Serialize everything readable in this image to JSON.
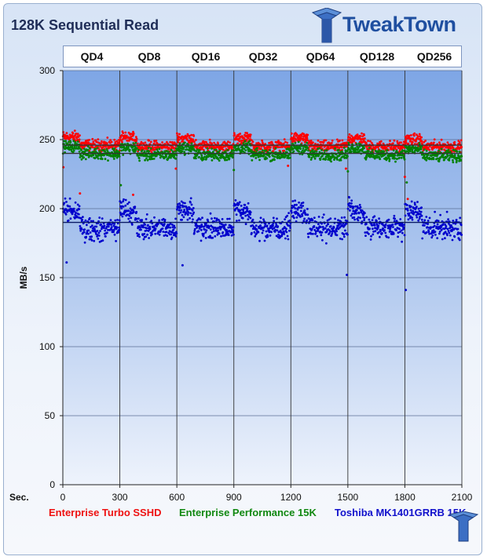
{
  "chart_data": {
    "type": "scatter",
    "title": "128K Sequential Read",
    "ylabel": "MB/s",
    "xlabel": "Sec.",
    "ylim": [
      0,
      300
    ],
    "xlim": [
      0,
      2100
    ],
    "yticks": [
      0,
      50,
      100,
      150,
      200,
      250,
      300
    ],
    "xticks": [
      0,
      300,
      600,
      900,
      1200,
      1500,
      1800,
      2100
    ],
    "grid": true,
    "segments": [
      "QD4",
      "QD8",
      "QD16",
      "QD32",
      "QD64",
      "QD128",
      "QD256"
    ],
    "segment_bounds": [
      0,
      300,
      600,
      900,
      1200,
      1500,
      1800,
      2100
    ],
    "legend_position": "bottom",
    "series": [
      {
        "name": "Enterprise Turbo SSHD",
        "color": "#ff0000",
        "segment_profile": [
          [
            252,
            246
          ],
          [
            251,
            245
          ],
          [
            251,
            245
          ],
          [
            251,
            245
          ],
          [
            251,
            245
          ],
          [
            251,
            245
          ],
          [
            250,
            245
          ]
        ],
        "spread": 3.5,
        "average": 246,
        "outliers": [
          [
            3,
            230
          ],
          [
            90,
            211
          ],
          [
            370,
            210
          ],
          [
            595,
            229
          ],
          [
            1185,
            231
          ],
          [
            1490,
            229
          ],
          [
            1800,
            223
          ],
          [
            1815,
            207
          ]
        ]
      },
      {
        "name": "Enterprise Performance 15K",
        "color": "#008000",
        "segment_profile": [
          [
            245,
            240
          ],
          [
            244,
            239
          ],
          [
            244,
            239
          ],
          [
            244,
            239
          ],
          [
            244,
            239
          ],
          [
            244,
            239
          ],
          [
            243,
            238
          ]
        ],
        "spread": 3.5,
        "average": 240,
        "outliers": [
          [
            305,
            217
          ],
          [
            1810,
            219
          ],
          [
            1500,
            227
          ],
          [
            900,
            228
          ]
        ]
      },
      {
        "name": "Toshiba MK1401GRRB 15K",
        "color": "#0000cc",
        "segment_profile": [
          [
            200,
            185
          ],
          [
            200,
            186
          ],
          [
            201,
            186
          ],
          [
            201,
            186
          ],
          [
            200,
            186
          ],
          [
            201,
            186
          ],
          [
            200,
            186
          ]
        ],
        "spread": 7,
        "average": 190,
        "outliers": [
          [
            1495,
            152
          ],
          [
            1805,
            141
          ],
          [
            20,
            161
          ],
          [
            630,
            159
          ]
        ]
      }
    ]
  },
  "brand": {
    "name": "TweakTown"
  }
}
